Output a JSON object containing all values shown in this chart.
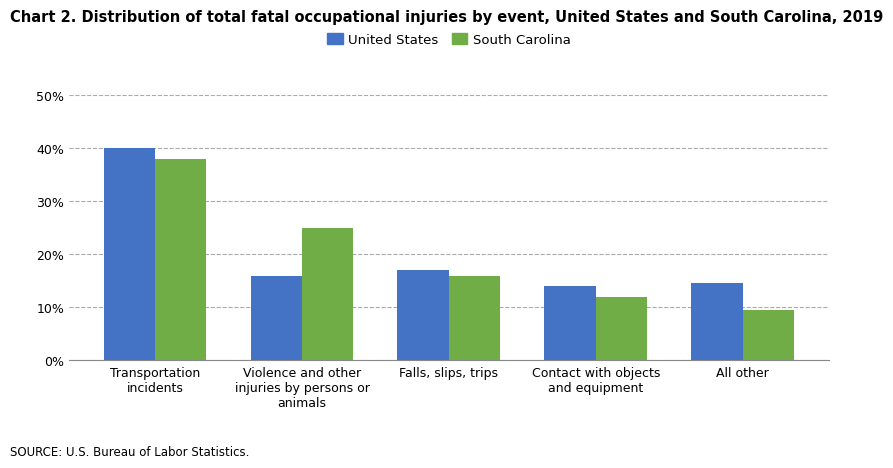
{
  "title": "Chart 2. Distribution of total fatal occupational injuries by event, United States and South Carolina, 2019",
  "categories": [
    "Transportation\nincidents",
    "Violence and other\ninjuries by persons or\nanimals",
    "Falls, slips, trips",
    "Contact with objects\nand equipment",
    "All other"
  ],
  "us_values": [
    40,
    16,
    17,
    14,
    14.5
  ],
  "sc_values": [
    38,
    25,
    16,
    12,
    9.5
  ],
  "us_color": "#4472C4",
  "sc_color": "#70AD47",
  "legend_labels": [
    "United States",
    "South Carolina"
  ],
  "ylim": [
    0,
    50
  ],
  "yticks": [
    0,
    10,
    20,
    30,
    40,
    50
  ],
  "ytick_labels": [
    "0%",
    "10%",
    "20%",
    "30%",
    "40%",
    "50%"
  ],
  "source_text": "SOURCE: U.S. Bureau of Labor Statistics.",
  "title_fontsize": 10.5,
  "tick_fontsize": 9,
  "legend_fontsize": 9.5,
  "bar_width": 0.35,
  "background_color": "#ffffff",
  "grid_color": "#aaaaaa"
}
